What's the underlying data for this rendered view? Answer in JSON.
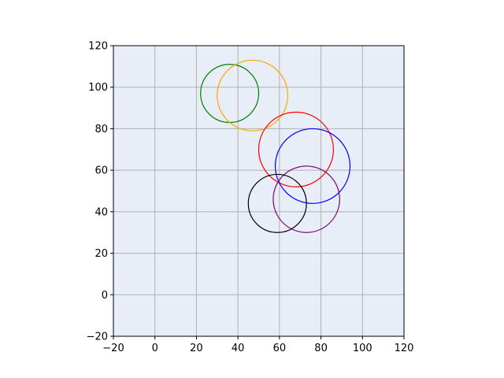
{
  "chart_data": {
    "type": "scatter",
    "title": "",
    "xlabel": "",
    "ylabel": "",
    "xlim": [
      -20,
      120
    ],
    "ylim": [
      -20,
      120
    ],
    "xticks": [
      -20,
      0,
      20,
      40,
      60,
      80,
      100,
      120
    ],
    "yticks": [
      -20,
      0,
      20,
      40,
      60,
      80,
      100,
      120
    ],
    "grid": true,
    "legend": "none",
    "background": "#e8eef7",
    "grid_color": "#b0b0b0",
    "circles": [
      {
        "cx": 36,
        "cy": 97,
        "r": 14,
        "color": "#008000"
      },
      {
        "cx": 47,
        "cy": 96,
        "r": 17,
        "color": "#ffa500"
      },
      {
        "cx": 68,
        "cy": 70,
        "r": 18,
        "color": "#ff0000"
      },
      {
        "cx": 76,
        "cy": 62,
        "r": 18,
        "color": "#0000ff"
      },
      {
        "cx": 73,
        "cy": 46,
        "r": 16,
        "color": "#800080"
      },
      {
        "cx": 59,
        "cy": 44,
        "r": 14,
        "color": "#000000"
      }
    ]
  }
}
